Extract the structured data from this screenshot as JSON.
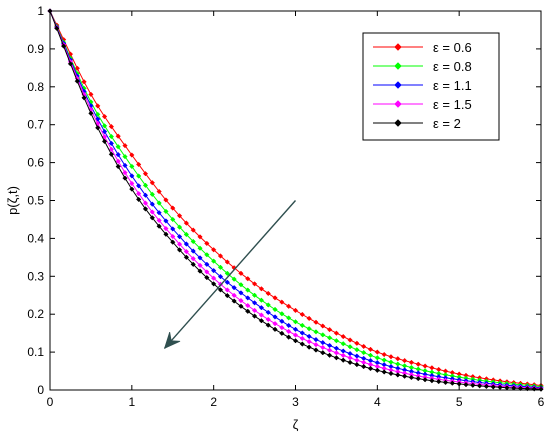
{
  "chart_data": {
    "type": "line",
    "xlabel": "ζ",
    "ylabel": "p(ζ,t)",
    "xlim": [
      0,
      6
    ],
    "ylim": [
      0,
      1
    ],
    "xticks": [
      "0",
      "1",
      "2",
      "3",
      "4",
      "5",
      "6"
    ],
    "yticks": [
      "0",
      "0.1",
      "0.2",
      "0.3",
      "0.4",
      "0.5",
      "0.6",
      "0.7",
      "0.8",
      "0.9",
      "1"
    ],
    "grid": false,
    "legend_position": "top-right",
    "marker": "diamond",
    "x": [
      0,
      0.5,
      1,
      1.5,
      2,
      2.5,
      3,
      3.5,
      4,
      4.5,
      5,
      5.5,
      6
    ],
    "series": [
      {
        "name": "ε = 0.6",
        "color": "#ff0000",
        "values": [
          1.0,
          0.78,
          0.62,
          0.48,
          0.37,
          0.28,
          0.21,
          0.15,
          0.1,
          0.068,
          0.042,
          0.024,
          0.012
        ]
      },
      {
        "name": "ε = 0.8",
        "color": "#00ff00",
        "values": [
          1.0,
          0.76,
          0.59,
          0.45,
          0.34,
          0.25,
          0.18,
          0.13,
          0.085,
          0.055,
          0.034,
          0.019,
          0.009
        ]
      },
      {
        "name": "ε = 1.1",
        "color": "#0000ff",
        "values": [
          1.0,
          0.75,
          0.565,
          0.425,
          0.315,
          0.23,
          0.16,
          0.11,
          0.072,
          0.045,
          0.027,
          0.014,
          0.006
        ]
      },
      {
        "name": "ε = 1.5",
        "color": "#ff00ff",
        "values": [
          1.0,
          0.74,
          0.545,
          0.405,
          0.295,
          0.21,
          0.145,
          0.098,
          0.062,
          0.037,
          0.021,
          0.01,
          0.004
        ]
      },
      {
        "name": "ε = 2",
        "color": "#000000",
        "values": [
          1.0,
          0.73,
          0.53,
          0.39,
          0.28,
          0.195,
          0.13,
          0.085,
          0.052,
          0.03,
          0.016,
          0.007,
          0.002
        ]
      }
    ],
    "annotations": [
      {
        "type": "arrow",
        "color": "#2f4f4f",
        "from": [
          3.0,
          0.5
        ],
        "to": [
          1.4,
          0.11
        ]
      }
    ]
  }
}
